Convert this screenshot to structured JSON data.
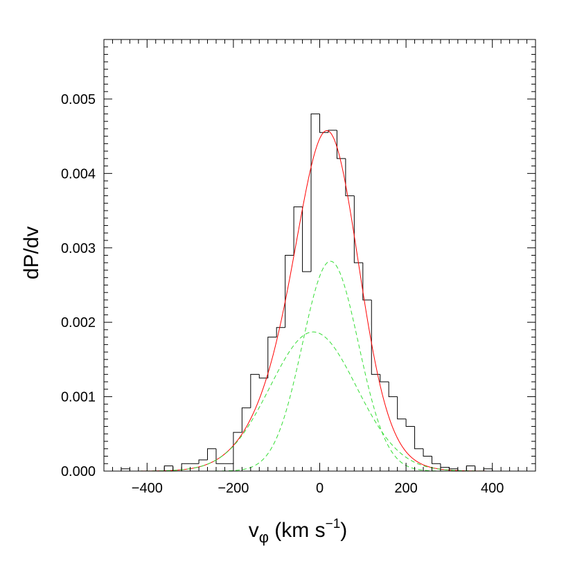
{
  "chart_data": {
    "type": "histogram",
    "xlabel": "v",
    "xlabel_subscript": "φ",
    "xlabel_units_prefix": " (km s",
    "xlabel_units_exponent": "−1",
    "xlabel_units_suffix": ")",
    "ylabel": "dP/dv",
    "xlim": [
      -500,
      500
    ],
    "ylim": [
      0,
      0.0058
    ],
    "x_ticks": [
      -400,
      -200,
      0,
      200,
      400
    ],
    "x_tick_labels": [
      "−400",
      "−200",
      "0",
      "200",
      "400"
    ],
    "y_ticks": [
      0.0,
      0.001,
      0.002,
      0.003,
      0.004,
      0.005
    ],
    "y_tick_labels": [
      "0.000",
      "0.001",
      "0.002",
      "0.003",
      "0.004",
      "0.005"
    ],
    "grid": false,
    "histogram": {
      "bin_width": 20,
      "edges": [
        -460,
        -440,
        -420,
        -400,
        -380,
        -360,
        -340,
        -320,
        -300,
        -280,
        -260,
        -240,
        -220,
        -200,
        -180,
        -160,
        -140,
        -120,
        -100,
        -80,
        -60,
        -40,
        -20,
        0,
        20,
        40,
        60,
        80,
        100,
        120,
        140,
        160,
        180,
        200,
        220,
        240,
        260,
        280,
        300,
        320,
        340,
        360,
        380,
        400
      ],
      "values": [
        3e-05,
        0.0,
        0.0,
        0.0,
        0.0,
        7e-05,
        0.0,
        0.0001,
        0.0001,
        0.00015,
        0.0003,
        0.0001,
        0.0001,
        0.00052,
        0.00085,
        0.0013,
        0.00125,
        0.0018,
        0.00193,
        0.0029,
        0.00355,
        0.00268,
        0.0048,
        0.00455,
        0.00458,
        0.0042,
        0.0037,
        0.0028,
        0.0023,
        0.0013,
        0.0012,
        0.001,
        0.0007,
        0.0006,
        0.0003,
        0.0002,
        0.0001,
        5e-05,
        3e-05,
        0.0,
        7e-05,
        0.0,
        3e-05
      ],
      "color": "#000000"
    },
    "series": [
      {
        "style": "solid",
        "color": "#ff0000",
        "components": [
          0,
          1
        ]
      },
      {
        "style": "dashed",
        "color": "#33dd33",
        "components": [
          0
        ]
      },
      {
        "style": "dashed",
        "color": "#33dd33",
        "components": [
          1
        ]
      }
    ],
    "components": [
      {
        "amplitude": 0.00282,
        "mean": 25,
        "sigma": 65
      },
      {
        "amplitude": 0.00187,
        "mean": -15,
        "sigma": 100
      }
    ]
  }
}
